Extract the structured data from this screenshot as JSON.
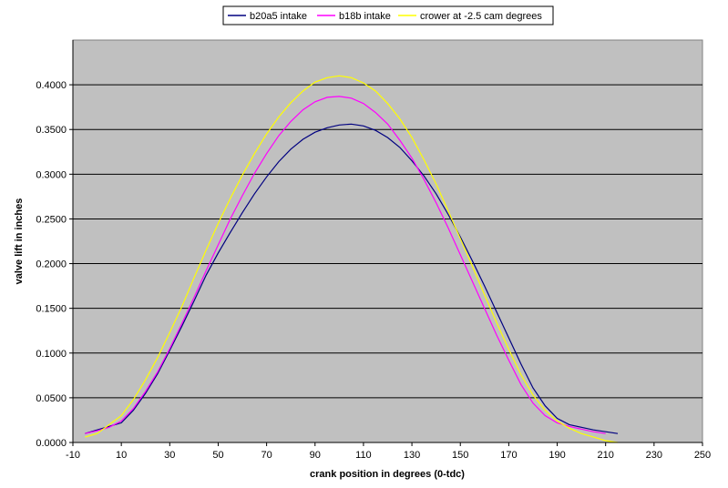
{
  "chart_data": {
    "type": "line",
    "title": "",
    "xlabel": "crank position in degrees (0-tdc)",
    "ylabel": "valve lift in inches",
    "xlim": [
      -10,
      250
    ],
    "ylim": [
      0,
      0.45
    ],
    "x_ticks": [
      "-10",
      "10",
      "30",
      "50",
      "70",
      "90",
      "110",
      "130",
      "150",
      "170",
      "190",
      "210",
      "230",
      "250"
    ],
    "y_ticks": [
      "0.0000",
      "0.0500",
      "0.1000",
      "0.1500",
      "0.2000",
      "0.2500",
      "0.3000",
      "0.3500",
      "0.4000"
    ],
    "grid": "horizontal",
    "legend": "top-center",
    "plot_background": "#c0c0c0",
    "series": [
      {
        "name": "b20a5 intake",
        "color": "#000080",
        "points": [
          [
            -5,
            0.01
          ],
          [
            0,
            0.014
          ],
          [
            5,
            0.018
          ],
          [
            10,
            0.022
          ],
          [
            15,
            0.036
          ],
          [
            20,
            0.055
          ],
          [
            25,
            0.077
          ],
          [
            30,
            0.103
          ],
          [
            35,
            0.13
          ],
          [
            40,
            0.158
          ],
          [
            45,
            0.187
          ],
          [
            50,
            0.212
          ],
          [
            55,
            0.235
          ],
          [
            60,
            0.257
          ],
          [
            65,
            0.278
          ],
          [
            70,
            0.297
          ],
          [
            75,
            0.314
          ],
          [
            80,
            0.328
          ],
          [
            85,
            0.339
          ],
          [
            90,
            0.347
          ],
          [
            95,
            0.352
          ],
          [
            100,
            0.355
          ],
          [
            105,
            0.356
          ],
          [
            110,
            0.354
          ],
          [
            115,
            0.349
          ],
          [
            120,
            0.341
          ],
          [
            125,
            0.33
          ],
          [
            130,
            0.315
          ],
          [
            135,
            0.298
          ],
          [
            140,
            0.278
          ],
          [
            145,
            0.255
          ],
          [
            150,
            0.23
          ],
          [
            155,
            0.203
          ],
          [
            160,
            0.175
          ],
          [
            165,
            0.146
          ],
          [
            170,
            0.117
          ],
          [
            175,
            0.088
          ],
          [
            180,
            0.061
          ],
          [
            185,
            0.041
          ],
          [
            190,
            0.027
          ],
          [
            195,
            0.02
          ],
          [
            200,
            0.017
          ],
          [
            205,
            0.014
          ],
          [
            210,
            0.012
          ],
          [
            215,
            0.01
          ]
        ]
      },
      {
        "name": "b18b intake",
        "color": "#ff00ff",
        "points": [
          [
            -5,
            0.01
          ],
          [
            0,
            0.013
          ],
          [
            5,
            0.017
          ],
          [
            10,
            0.024
          ],
          [
            15,
            0.038
          ],
          [
            20,
            0.057
          ],
          [
            25,
            0.079
          ],
          [
            30,
            0.105
          ],
          [
            35,
            0.133
          ],
          [
            40,
            0.162
          ],
          [
            45,
            0.192
          ],
          [
            50,
            0.221
          ],
          [
            55,
            0.25
          ],
          [
            60,
            0.276
          ],
          [
            65,
            0.301
          ],
          [
            70,
            0.323
          ],
          [
            75,
            0.343
          ],
          [
            80,
            0.359
          ],
          [
            85,
            0.372
          ],
          [
            90,
            0.381
          ],
          [
            95,
            0.386
          ],
          [
            100,
            0.387
          ],
          [
            105,
            0.385
          ],
          [
            110,
            0.379
          ],
          [
            115,
            0.369
          ],
          [
            120,
            0.356
          ],
          [
            125,
            0.338
          ],
          [
            130,
            0.318
          ],
          [
            135,
            0.294
          ],
          [
            140,
            0.268
          ],
          [
            145,
            0.24
          ],
          [
            150,
            0.21
          ],
          [
            155,
            0.18
          ],
          [
            160,
            0.15
          ],
          [
            165,
            0.12
          ],
          [
            170,
            0.092
          ],
          [
            175,
            0.065
          ],
          [
            180,
            0.044
          ],
          [
            185,
            0.03
          ],
          [
            190,
            0.022
          ],
          [
            195,
            0.018
          ],
          [
            200,
            0.015
          ],
          [
            205,
            0.012
          ],
          [
            210,
            0.01
          ]
        ]
      },
      {
        "name": "crower at -2.5 cam degrees",
        "color": "#ffff00",
        "points": [
          [
            -5,
            0.006
          ],
          [
            0,
            0.01
          ],
          [
            5,
            0.02
          ],
          [
            10,
            0.03
          ],
          [
            15,
            0.048
          ],
          [
            20,
            0.07
          ],
          [
            25,
            0.095
          ],
          [
            30,
            0.123
          ],
          [
            35,
            0.152
          ],
          [
            40,
            0.184
          ],
          [
            45,
            0.215
          ],
          [
            50,
            0.245
          ],
          [
            55,
            0.273
          ],
          [
            60,
            0.299
          ],
          [
            65,
            0.323
          ],
          [
            70,
            0.345
          ],
          [
            75,
            0.364
          ],
          [
            80,
            0.38
          ],
          [
            85,
            0.393
          ],
          [
            90,
            0.403
          ],
          [
            95,
            0.408
          ],
          [
            100,
            0.41
          ],
          [
            105,
            0.408
          ],
          [
            110,
            0.402
          ],
          [
            115,
            0.393
          ],
          [
            120,
            0.379
          ],
          [
            125,
            0.362
          ],
          [
            130,
            0.341
          ],
          [
            135,
            0.316
          ],
          [
            140,
            0.289
          ],
          [
            145,
            0.259
          ],
          [
            150,
            0.228
          ],
          [
            155,
            0.197
          ],
          [
            160,
            0.165
          ],
          [
            165,
            0.134
          ],
          [
            170,
            0.104
          ],
          [
            175,
            0.076
          ],
          [
            180,
            0.053
          ],
          [
            185,
            0.036
          ],
          [
            190,
            0.024
          ],
          [
            195,
            0.016
          ],
          [
            200,
            0.01
          ],
          [
            205,
            0.006
          ],
          [
            210,
            0.002
          ],
          [
            215,
            0.0
          ]
        ]
      }
    ]
  }
}
